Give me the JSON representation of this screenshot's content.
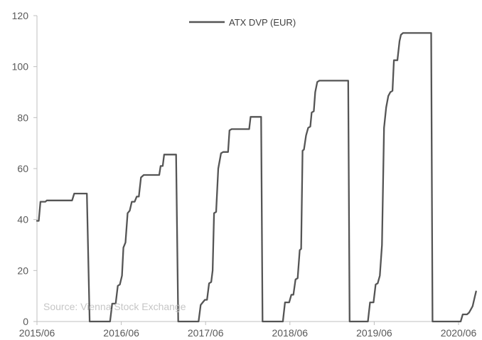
{
  "chart_data": {
    "type": "line",
    "title": "",
    "xlabel": "",
    "ylabel": "",
    "x_unit": "months since 2015/06",
    "xlim": [
      0,
      60
    ],
    "ylim": [
      0,
      120
    ],
    "y_ticks": [
      0,
      20,
      40,
      60,
      80,
      100,
      120
    ],
    "x_ticks": [
      {
        "x": 0,
        "label": "2015/06"
      },
      {
        "x": 12,
        "label": "2016/06"
      },
      {
        "x": 24,
        "label": "2017/06"
      },
      {
        "x": 36,
        "label": "2018/06"
      },
      {
        "x": 48,
        "label": "2019/06"
      },
      {
        "x": 60,
        "label": "2020/06"
      }
    ],
    "grid": false,
    "legend_position": "top-center",
    "annotation": "Source: Vienna Stock Exchange",
    "series": [
      {
        "name": "ATX DVP (EUR)",
        "color": "#555555",
        "points": [
          [
            0,
            39.5
          ],
          [
            0.25,
            39.5
          ],
          [
            0.5,
            47
          ],
          [
            1.2,
            47
          ],
          [
            1.4,
            47.5
          ],
          [
            5,
            47.5
          ],
          [
            5.3,
            50.2
          ],
          [
            7.1,
            50.2
          ],
          [
            7.5,
            0
          ],
          [
            10.4,
            0
          ],
          [
            10.7,
            7
          ],
          [
            11.2,
            7
          ],
          [
            11.5,
            14
          ],
          [
            11.8,
            14.5
          ],
          [
            12.1,
            18
          ],
          [
            12.3,
            29
          ],
          [
            12.6,
            31
          ],
          [
            12.9,
            42.5
          ],
          [
            13.2,
            43.5
          ],
          [
            13.5,
            47
          ],
          [
            13.9,
            47
          ],
          [
            14.2,
            49
          ],
          [
            14.5,
            49
          ],
          [
            14.8,
            56.5
          ],
          [
            15.2,
            57.5
          ],
          [
            17.4,
            57.5
          ],
          [
            17.6,
            61
          ],
          [
            17.9,
            61
          ],
          [
            18.1,
            65.5
          ],
          [
            19.8,
            65.5
          ],
          [
            20.1,
            0
          ],
          [
            23,
            0
          ],
          [
            23.3,
            6.5
          ],
          [
            23.6,
            7.5
          ],
          [
            23.9,
            8.5
          ],
          [
            24.2,
            8.5
          ],
          [
            24.5,
            15
          ],
          [
            24.8,
            15.5
          ],
          [
            25,
            20
          ],
          [
            25.2,
            42.5
          ],
          [
            25.5,
            43
          ],
          [
            25.8,
            60
          ],
          [
            26.2,
            66
          ],
          [
            26.5,
            66.5
          ],
          [
            27.2,
            66.5
          ],
          [
            27.4,
            75
          ],
          [
            27.7,
            75.5
          ],
          [
            30.2,
            75.5
          ],
          [
            30.4,
            80.3
          ],
          [
            31.9,
            80.3
          ],
          [
            32.1,
            0
          ],
          [
            35,
            0
          ],
          [
            35.3,
            7.5
          ],
          [
            35.9,
            7.5
          ],
          [
            36.2,
            10.5
          ],
          [
            36.5,
            10.5
          ],
          [
            36.8,
            16.5
          ],
          [
            37.1,
            17
          ],
          [
            37.4,
            28
          ],
          [
            37.6,
            28.5
          ],
          [
            37.8,
            67
          ],
          [
            38,
            67.5
          ],
          [
            38.3,
            73
          ],
          [
            38.6,
            76
          ],
          [
            38.9,
            76.5
          ],
          [
            39.1,
            82
          ],
          [
            39.4,
            82.5
          ],
          [
            39.6,
            90
          ],
          [
            39.9,
            94
          ],
          [
            40.2,
            94.5
          ],
          [
            44.3,
            94.5
          ],
          [
            44.5,
            0
          ],
          [
            47.1,
            0
          ],
          [
            47.4,
            7.5
          ],
          [
            47.9,
            7.5
          ],
          [
            48.2,
            14.5
          ],
          [
            48.5,
            15
          ],
          [
            48.8,
            18
          ],
          [
            49.1,
            30
          ],
          [
            49.4,
            76
          ],
          [
            49.7,
            84
          ],
          [
            50,
            88.5
          ],
          [
            50.3,
            90
          ],
          [
            50.6,
            90.5
          ],
          [
            50.8,
            102.5
          ],
          [
            51.3,
            102.5
          ],
          [
            51.6,
            110
          ],
          [
            51.8,
            112.5
          ],
          [
            52.1,
            113.2
          ],
          [
            56.1,
            113.2
          ],
          [
            56.3,
            0
          ],
          [
            60.3,
            0
          ],
          [
            60.6,
            2.8
          ],
          [
            61.2,
            2.8
          ],
          [
            61.5,
            3.5
          ],
          [
            61.7,
            4.5
          ],
          [
            62,
            6
          ],
          [
            62.3,
            9.5
          ],
          [
            62.5,
            11.8
          ]
        ]
      }
    ]
  }
}
